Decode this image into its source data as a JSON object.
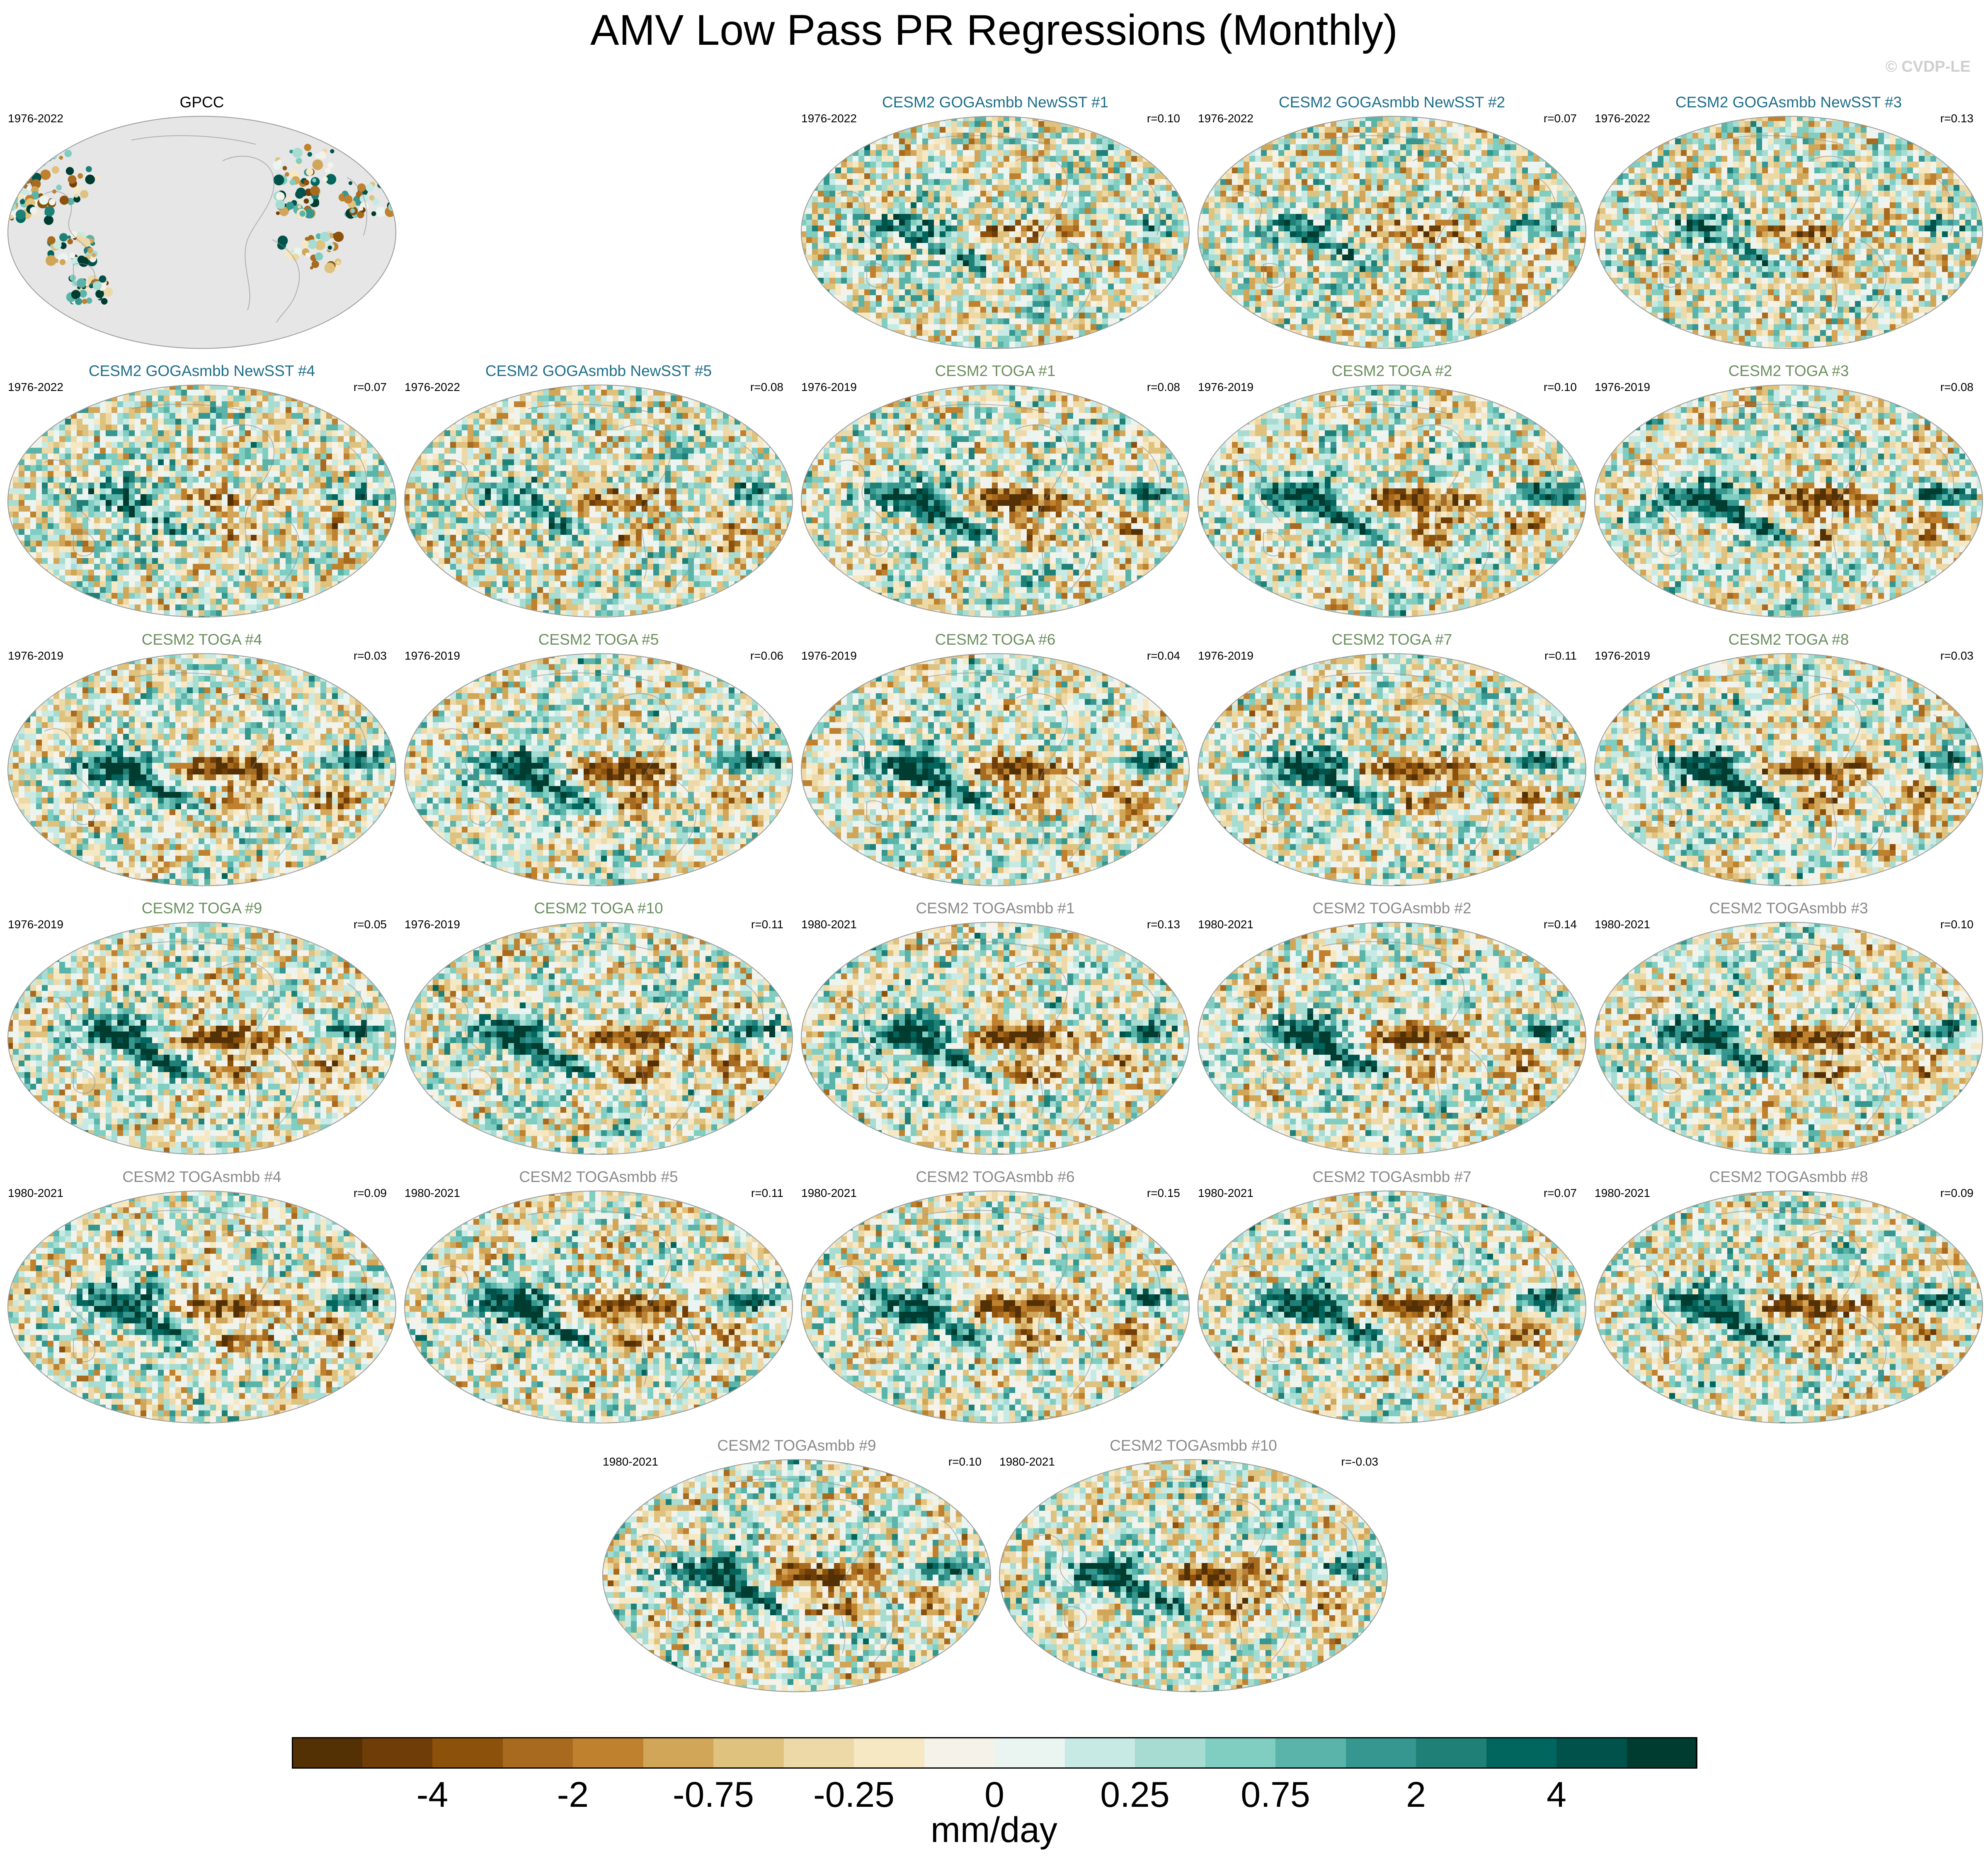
{
  "title": "AMV Low Pass PR Regressions (Monthly)",
  "credit": "© CVDP-LE",
  "colors": {
    "obs_title": "#000000",
    "goga_title": "#1e6e8a",
    "toga_title": "#6b8f5e",
    "togasmbb_title": "#8a8a8a",
    "land_mask": "#e6e6e6"
  },
  "panels": [
    {
      "title": "GPCC",
      "group": "obs",
      "years": "1976-2022",
      "corr": "",
      "variant": "obs"
    },
    {
      "title": "CESM2 GOGAsmbb NewSST #1",
      "group": "goga",
      "years": "1976-2022",
      "corr": "r=0.10",
      "variant": "weak"
    },
    {
      "title": "CESM2 GOGAsmbb NewSST #2",
      "group": "goga",
      "years": "1976-2022",
      "corr": "r=0.07",
      "variant": "weak"
    },
    {
      "title": "CESM2 GOGAsmbb NewSST #3",
      "group": "goga",
      "years": "1976-2022",
      "corr": "r=0.13",
      "variant": "weak"
    },
    {
      "title": "CESM2 GOGAsmbb NewSST #4",
      "group": "goga",
      "years": "1976-2022",
      "corr": "r=0.07",
      "variant": "weak"
    },
    {
      "title": "CESM2 GOGAsmbb NewSST #5",
      "group": "goga",
      "years": "1976-2022",
      "corr": "r=0.08",
      "variant": "weak"
    },
    {
      "title": "CESM2 TOGA #1",
      "group": "toga",
      "years": "1976-2019",
      "corr": "r=0.08",
      "variant": "strong"
    },
    {
      "title": "CESM2 TOGA #2",
      "group": "toga",
      "years": "1976-2019",
      "corr": "r=0.10",
      "variant": "strong"
    },
    {
      "title": "CESM2 TOGA #3",
      "group": "toga",
      "years": "1976-2019",
      "corr": "r=0.08",
      "variant": "strong"
    },
    {
      "title": "CESM2 TOGA #4",
      "group": "toga",
      "years": "1976-2019",
      "corr": "r=0.03",
      "variant": "strong"
    },
    {
      "title": "CESM2 TOGA #5",
      "group": "toga",
      "years": "1976-2019",
      "corr": "r=0.06",
      "variant": "strong"
    },
    {
      "title": "CESM2 TOGA #6",
      "group": "toga",
      "years": "1976-2019",
      "corr": "r=0.04",
      "variant": "strong"
    },
    {
      "title": "CESM2 TOGA #7",
      "group": "toga",
      "years": "1976-2019",
      "corr": "r=0.11",
      "variant": "strong"
    },
    {
      "title": "CESM2 TOGA #8",
      "group": "toga",
      "years": "1976-2019",
      "corr": "r=0.03",
      "variant": "strong"
    },
    {
      "title": "CESM2 TOGA #9",
      "group": "toga",
      "years": "1976-2019",
      "corr": "r=0.05",
      "variant": "strong"
    },
    {
      "title": "CESM2 TOGA #10",
      "group": "toga",
      "years": "1976-2019",
      "corr": "r=0.11",
      "variant": "strong"
    },
    {
      "title": "CESM2 TOGAsmbb #1",
      "group": "togasmbb",
      "years": "1980-2021",
      "corr": "r=0.13",
      "variant": "strong"
    },
    {
      "title": "CESM2 TOGAsmbb #2",
      "group": "togasmbb",
      "years": "1980-2021",
      "corr": "r=0.14",
      "variant": "strong"
    },
    {
      "title": "CESM2 TOGAsmbb #3",
      "group": "togasmbb",
      "years": "1980-2021",
      "corr": "r=0.10",
      "variant": "strong"
    },
    {
      "title": "CESM2 TOGAsmbb #4",
      "group": "togasmbb",
      "years": "1980-2021",
      "corr": "r=0.09",
      "variant": "strong"
    },
    {
      "title": "CESM2 TOGAsmbb #5",
      "group": "togasmbb",
      "years": "1980-2021",
      "corr": "r=0.11",
      "variant": "strong"
    },
    {
      "title": "CESM2 TOGAsmbb #6",
      "group": "togasmbb",
      "years": "1980-2021",
      "corr": "r=0.15",
      "variant": "strong"
    },
    {
      "title": "CESM2 TOGAsmbb #7",
      "group": "togasmbb",
      "years": "1980-2021",
      "corr": "r=0.07",
      "variant": "strong"
    },
    {
      "title": "CESM2 TOGAsmbb #8",
      "group": "togasmbb",
      "years": "1980-2021",
      "corr": "r=0.09",
      "variant": "strong"
    },
    {
      "title": "CESM2 TOGAsmbb #9",
      "group": "togasmbb",
      "years": "1980-2021",
      "corr": "r=0.10",
      "variant": "strong"
    },
    {
      "title": "CESM2 TOGAsmbb #10",
      "group": "togasmbb",
      "years": "1980-2021",
      "corr": "r=-0.03",
      "variant": "strong"
    }
  ],
  "colorbar": {
    "colors": [
      "#543005",
      "#6f3d08",
      "#8c510a",
      "#a76a1f",
      "#bf812d",
      "#d2a659",
      "#dfc27d",
      "#edd9a8",
      "#f6e8c3",
      "#f5f2ea",
      "#eaf4f1",
      "#c7eae5",
      "#a6dcd2",
      "#80cdc1",
      "#5ab4a9",
      "#35978f",
      "#1f8078",
      "#01665e",
      "#00524a",
      "#003c30"
    ],
    "ticks": [
      "-4",
      "-2",
      "-0.75",
      "-0.25",
      "0",
      "0.25",
      "0.75",
      "2",
      "4"
    ],
    "units": "mm/day"
  }
}
